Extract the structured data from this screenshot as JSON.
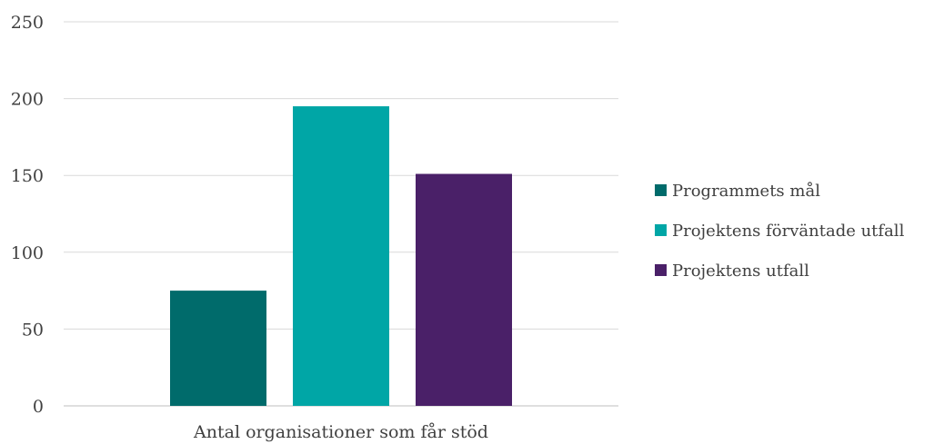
{
  "chart_data": {
    "type": "bar",
    "categories": [
      "Antal organisationer som får stöd"
    ],
    "series": [
      {
        "name": "Programmets mål",
        "values": [
          75
        ],
        "color": "#006b6b"
      },
      {
        "name": "Projektens förväntade utfall",
        "values": [
          195
        ],
        "color": "#00a6a6"
      },
      {
        "name": "Projektens utfall",
        "values": [
          151
        ],
        "color": "#4a2068"
      }
    ],
    "y_ticks": [
      "0",
      "50",
      "100",
      "150",
      "200",
      "250"
    ],
    "ylim": [
      0,
      250
    ],
    "grid": true,
    "legend_position": "right",
    "title": "",
    "xlabel": "",
    "ylabel": ""
  }
}
